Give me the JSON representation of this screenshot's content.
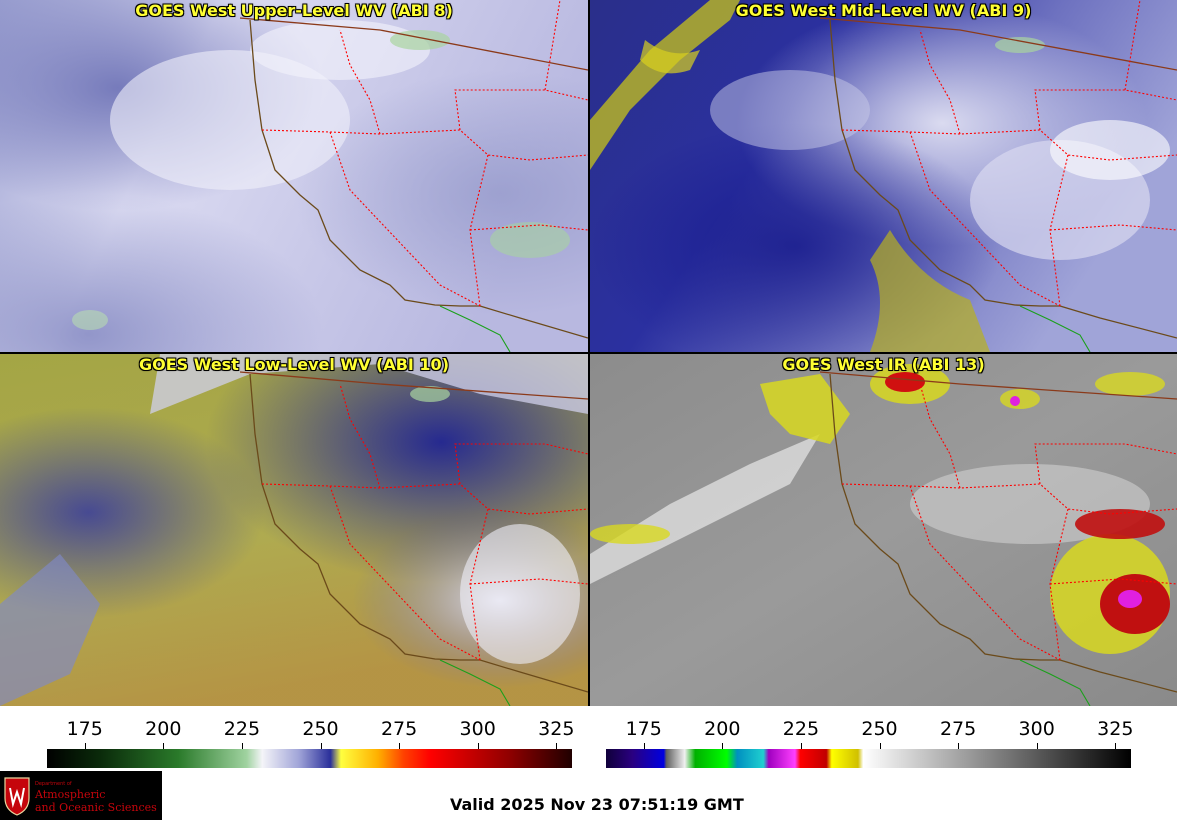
{
  "panels": [
    {
      "title": "GOES West Upper-Level WV (ABI 8)",
      "scheme": "wv_upper"
    },
    {
      "title": "GOES West Mid-Level WV (ABI 9)",
      "scheme": "wv_mid"
    },
    {
      "title": "GOES West Low-Level WV (ABI 10)",
      "scheme": "wv_low"
    },
    {
      "title": "GOES West IR (ABI 13)",
      "scheme": "ir"
    }
  ],
  "colorbars": [
    {
      "name": "wv-colorbar",
      "ticks": [
        "175",
        "200",
        "225",
        "250",
        "275",
        "300",
        "325"
      ],
      "tick_values": [
        175,
        200,
        225,
        250,
        275,
        300,
        325
      ],
      "range": [
        163,
        330
      ]
    },
    {
      "name": "ir-colorbar",
      "ticks": [
        "175",
        "200",
        "225",
        "250",
        "275",
        "300",
        "325"
      ],
      "tick_values": [
        175,
        200,
        225,
        250,
        275,
        300,
        325
      ],
      "range": [
        163,
        330
      ]
    }
  ],
  "colors": {
    "title_text": "#ffff33",
    "state_borders": "#ff0000",
    "coastline": "#6b4a1a",
    "mexico_border": "#1aa01a"
  },
  "logo": {
    "line1": "Department of",
    "line2": "Atmospheric",
    "line3": "and Oceanic Sciences"
  },
  "footer": {
    "valid_text": "Valid 2025 Nov 23 07:51:19 GMT"
  }
}
